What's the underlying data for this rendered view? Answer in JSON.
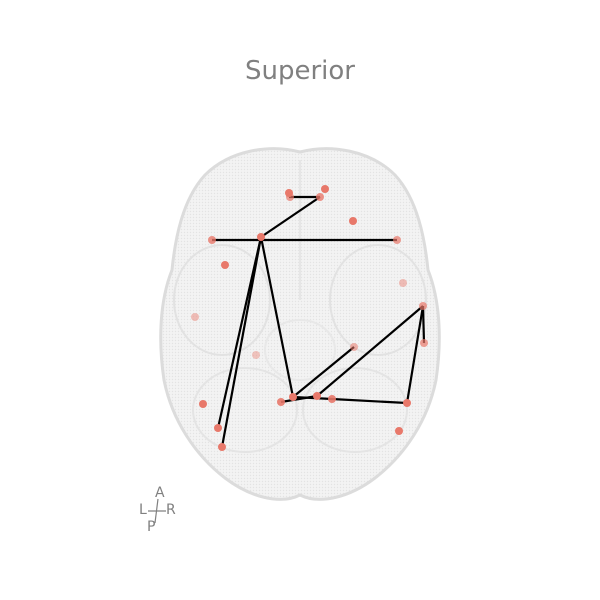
{
  "view": {
    "title": "Superior",
    "orientation": {
      "anterior": "A",
      "posterior": "P",
      "left": "L",
      "right": "R"
    }
  },
  "colors": {
    "node": "#e8786a",
    "edge": "#000000",
    "brain_fill": "#f1f1f1",
    "brain_outline": "#dddddd",
    "text": "#808080"
  },
  "network": {
    "node_count": 26,
    "edge_count": 13
  }
}
